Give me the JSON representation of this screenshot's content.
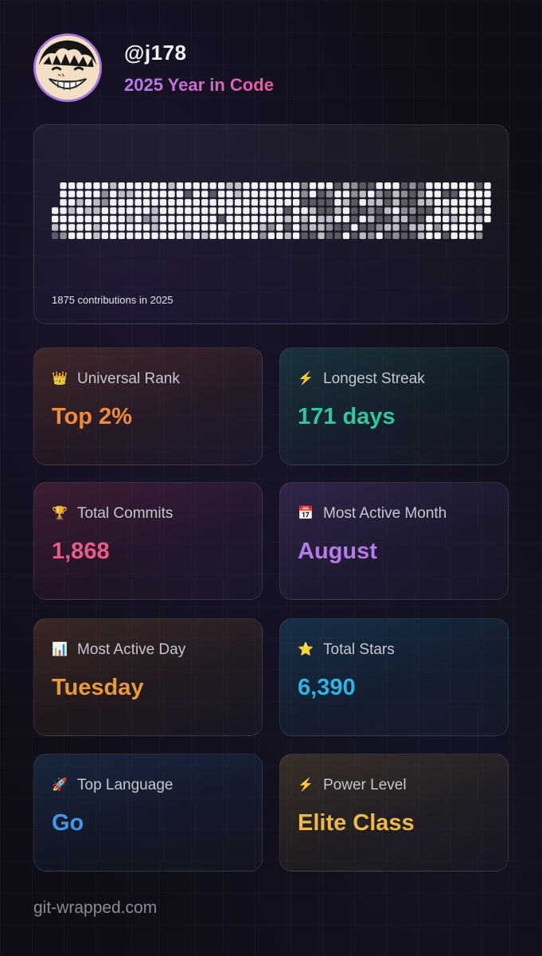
{
  "profile": {
    "username": "@j178",
    "subtitle": "2025 Year in Code"
  },
  "contributions": {
    "label": "1875 contributions in 2025",
    "dot_colors": [
      "#2a2a30",
      "#5a5a62",
      "#8e8e96",
      "#bdbdc3",
      "#f2f2f4"
    ]
  },
  "stats": [
    {
      "icon": "crown-icon",
      "glyph": "👑",
      "label": "Universal Rank",
      "value": "Top 2%",
      "color": "#f08a3c"
    },
    {
      "icon": "lightning-icon",
      "glyph": "⚡",
      "label": "Longest Streak",
      "value": "171 days",
      "color": "#2fc7a0"
    },
    {
      "icon": "trophy-icon",
      "glyph": "🏆",
      "label": "Total Commits",
      "value": "1,868",
      "color": "#ec5a8c"
    },
    {
      "icon": "calendar-icon",
      "glyph": "📅",
      "label": "Most Active Month",
      "value": "August",
      "color": "#b47be8"
    },
    {
      "icon": "bar-chart-icon",
      "glyph": "📊",
      "label": "Most Active Day",
      "value": "Tuesday",
      "color": "#e8993a"
    },
    {
      "icon": "star-icon",
      "glyph": "⭐",
      "label": "Total Stars",
      "value": "6,390",
      "color": "#2bb4e4"
    },
    {
      "icon": "rocket-icon",
      "glyph": "🚀",
      "label": "Top Language",
      "value": "Go",
      "color": "#3e9ae8"
    },
    {
      "icon": "lightning-icon",
      "glyph": "⚡",
      "label": "Power Level",
      "value": "Elite Class",
      "color": "#f0b84a"
    }
  ],
  "footer": {
    "text": "git-wrapped.com"
  }
}
